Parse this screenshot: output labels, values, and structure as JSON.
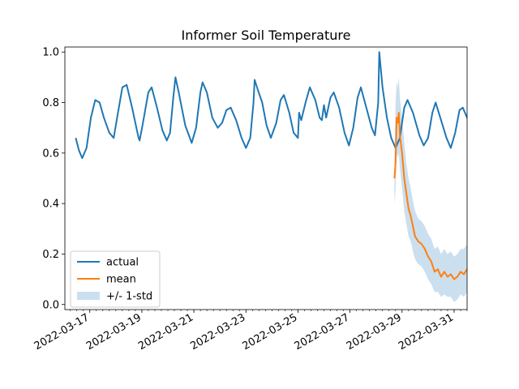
{
  "chart_data": {
    "type": "line",
    "title": "Informer Soil Temperature",
    "xlabel": "",
    "ylabel": "",
    "x_axis_type": "date",
    "xlim": [
      "2022-03-16T01:00",
      "2022-03-31T12:00"
    ],
    "ylim": [
      -0.02,
      1.02
    ],
    "x_ticks": [
      "2022-03-17",
      "2022-03-19",
      "2022-03-21",
      "2022-03-23",
      "2022-03-25",
      "2022-03-27",
      "2022-03-29",
      "2022-03-31"
    ],
    "y_ticks": [
      "0.0",
      "0.2",
      "0.4",
      "0.6",
      "0.8",
      "1.0"
    ],
    "legend": {
      "placement": "lower-left",
      "entries": [
        "actual",
        "mean",
        "+/- 1-std"
      ]
    },
    "colors": {
      "actual": "#1f77b4",
      "mean": "#ff7f0e",
      "band": "#b9d4ea"
    },
    "grid": false,
    "series": [
      {
        "name": "actual",
        "kind": "line",
        "points": [
          [
            "2022-03-16T11:00",
            0.66
          ],
          [
            "2022-03-16T14:00",
            0.61
          ],
          [
            "2022-03-16T17:00",
            0.58
          ],
          [
            "2022-03-16T21:00",
            0.62
          ],
          [
            "2022-03-17T01:00",
            0.74
          ],
          [
            "2022-03-17T05:00",
            0.81
          ],
          [
            "2022-03-17T09:00",
            0.8
          ],
          [
            "2022-03-17T13:00",
            0.74
          ],
          [
            "2022-03-17T18:00",
            0.68
          ],
          [
            "2022-03-17T22:00",
            0.66
          ],
          [
            "2022-03-18T02:00",
            0.76
          ],
          [
            "2022-03-18T06:00",
            0.86
          ],
          [
            "2022-03-18T10:00",
            0.87
          ],
          [
            "2022-03-18T15:00",
            0.78
          ],
          [
            "2022-03-18T19:00",
            0.7
          ],
          [
            "2022-03-18T21:00",
            0.66
          ],
          [
            "2022-03-18T22:00",
            0.65
          ],
          [
            "2022-03-19T01:00",
            0.72
          ],
          [
            "2022-03-19T06:00",
            0.84
          ],
          [
            "2022-03-19T09:00",
            0.86
          ],
          [
            "2022-03-19T14:00",
            0.78
          ],
          [
            "2022-03-19T19:00",
            0.69
          ],
          [
            "2022-03-19T23:00",
            0.65
          ],
          [
            "2022-03-20T02:00",
            0.68
          ],
          [
            "2022-03-20T05:00",
            0.82
          ],
          [
            "2022-03-20T07:00",
            0.9
          ],
          [
            "2022-03-20T10:00",
            0.84
          ],
          [
            "2022-03-20T16:00",
            0.71
          ],
          [
            "2022-03-20T22:00",
            0.64
          ],
          [
            "2022-03-21T02:00",
            0.7
          ],
          [
            "2022-03-21T06:00",
            0.84
          ],
          [
            "2022-03-21T08:00",
            0.88
          ],
          [
            "2022-03-21T12:00",
            0.84
          ],
          [
            "2022-03-21T17:00",
            0.74
          ],
          [
            "2022-03-21T22:00",
            0.7
          ],
          [
            "2022-03-22T02:00",
            0.72
          ],
          [
            "2022-03-22T06:00",
            0.77
          ],
          [
            "2022-03-22T10:00",
            0.78
          ],
          [
            "2022-03-22T15:00",
            0.73
          ],
          [
            "2022-03-22T20:00",
            0.66
          ],
          [
            "2022-03-23T00:00",
            0.62
          ],
          [
            "2022-03-23T04:00",
            0.66
          ],
          [
            "2022-03-23T07:00",
            0.8
          ],
          [
            "2022-03-23T08:00",
            0.89
          ],
          [
            "2022-03-23T11:00",
            0.85
          ],
          [
            "2022-03-23T15:00",
            0.8
          ],
          [
            "2022-03-23T19:00",
            0.71
          ],
          [
            "2022-03-23T23:00",
            0.66
          ],
          [
            "2022-03-24T04:00",
            0.72
          ],
          [
            "2022-03-24T08:00",
            0.81
          ],
          [
            "2022-03-24T11:00",
            0.83
          ],
          [
            "2022-03-24T16:00",
            0.76
          ],
          [
            "2022-03-24T20:00",
            0.68
          ],
          [
            "2022-03-25T00:00",
            0.66
          ],
          [
            "2022-03-25T01:00",
            0.76
          ],
          [
            "2022-03-25T03:00",
            0.73
          ],
          [
            "2022-03-25T07:00",
            0.8
          ],
          [
            "2022-03-25T11:00",
            0.86
          ],
          [
            "2022-03-25T16:00",
            0.81
          ],
          [
            "2022-03-25T20:00",
            0.74
          ],
          [
            "2022-03-25T22:00",
            0.73
          ],
          [
            "2022-03-26T00:00",
            0.79
          ],
          [
            "2022-03-26T02:00",
            0.74
          ],
          [
            "2022-03-26T06:00",
            0.82
          ],
          [
            "2022-03-26T09:00",
            0.84
          ],
          [
            "2022-03-26T14:00",
            0.78
          ],
          [
            "2022-03-26T19:00",
            0.68
          ],
          [
            "2022-03-26T23:00",
            0.63
          ],
          [
            "2022-03-27T03:00",
            0.7
          ],
          [
            "2022-03-27T07:00",
            0.82
          ],
          [
            "2022-03-27T10:00",
            0.86
          ],
          [
            "2022-03-27T15:00",
            0.78
          ],
          [
            "2022-03-27T20:00",
            0.7
          ],
          [
            "2022-03-27T23:00",
            0.67
          ],
          [
            "2022-03-28T02:00",
            0.8
          ],
          [
            "2022-03-28T03:00",
            1.0
          ],
          [
            "2022-03-28T06:00",
            0.86
          ],
          [
            "2022-03-28T10:00",
            0.74
          ],
          [
            "2022-03-28T14:00",
            0.66
          ],
          [
            "2022-03-28T18:00",
            0.62
          ],
          [
            "2022-03-28T22:00",
            0.66
          ],
          [
            "2022-03-29T02:00",
            0.78
          ],
          [
            "2022-03-29T05:00",
            0.81
          ],
          [
            "2022-03-29T10:00",
            0.76
          ],
          [
            "2022-03-29T16:00",
            0.67
          ],
          [
            "2022-03-29T20:00",
            0.63
          ],
          [
            "2022-03-30T00:00",
            0.66
          ],
          [
            "2022-03-30T04:00",
            0.76
          ],
          [
            "2022-03-30T07:00",
            0.8
          ],
          [
            "2022-03-30T12:00",
            0.73
          ],
          [
            "2022-03-30T17:00",
            0.66
          ],
          [
            "2022-03-30T21:00",
            0.62
          ],
          [
            "2022-03-31T01:00",
            0.68
          ],
          [
            "2022-03-31T05:00",
            0.77
          ],
          [
            "2022-03-31T08:00",
            0.78
          ],
          [
            "2022-03-31T13:00",
            0.73
          ],
          [
            "2022-03-31T18:00",
            0.66
          ],
          [
            "2022-03-31T21:00",
            0.63
          ]
        ]
      },
      {
        "name": "mean",
        "kind": "line",
        "points": [
          [
            "2022-03-28T17:00",
            0.5
          ],
          [
            "2022-03-28T18:00",
            0.56
          ],
          [
            "2022-03-28T19:00",
            0.74
          ],
          [
            "2022-03-28T20:00",
            0.72
          ],
          [
            "2022-03-28T21:00",
            0.76
          ],
          [
            "2022-03-28T22:00",
            0.67
          ],
          [
            "2022-03-29T00:00",
            0.6
          ],
          [
            "2022-03-29T02:00",
            0.5
          ],
          [
            "2022-03-29T04:00",
            0.44
          ],
          [
            "2022-03-29T06:00",
            0.38
          ],
          [
            "2022-03-29T08:00",
            0.35
          ],
          [
            "2022-03-29T10:00",
            0.31
          ],
          [
            "2022-03-29T12:00",
            0.27
          ],
          [
            "2022-03-29T15:00",
            0.25
          ],
          [
            "2022-03-29T18:00",
            0.24
          ],
          [
            "2022-03-29T21:00",
            0.22
          ],
          [
            "2022-03-30T00:00",
            0.19
          ],
          [
            "2022-03-30T03:00",
            0.17
          ],
          [
            "2022-03-30T06:00",
            0.13
          ],
          [
            "2022-03-30T09:00",
            0.14
          ],
          [
            "2022-03-30T12:00",
            0.11
          ],
          [
            "2022-03-30T15:00",
            0.13
          ],
          [
            "2022-03-30T18:00",
            0.11
          ],
          [
            "2022-03-30T21:00",
            0.12
          ],
          [
            "2022-03-31T00:00",
            0.1
          ],
          [
            "2022-03-31T03:00",
            0.11
          ],
          [
            "2022-03-31T06:00",
            0.13
          ],
          [
            "2022-03-31T09:00",
            0.12
          ],
          [
            "2022-03-31T12:00",
            0.14
          ],
          [
            "2022-03-31T15:00",
            0.15
          ],
          [
            "2022-03-31T18:00",
            0.16
          ],
          [
            "2022-03-31T21:00",
            0.17
          ]
        ]
      },
      {
        "name": "+/- 1-std",
        "kind": "band",
        "points": [
          [
            "2022-03-28T17:00",
            0.4,
            0.6
          ],
          [
            "2022-03-28T18:00",
            0.45,
            0.8
          ],
          [
            "2022-03-28T19:00",
            0.6,
            0.88
          ],
          [
            "2022-03-28T20:00",
            0.58,
            0.86
          ],
          [
            "2022-03-28T21:00",
            0.6,
            0.9
          ],
          [
            "2022-03-28T22:00",
            0.54,
            0.82
          ],
          [
            "2022-03-29T00:00",
            0.46,
            0.74
          ],
          [
            "2022-03-29T02:00",
            0.37,
            0.64
          ],
          [
            "2022-03-29T04:00",
            0.32,
            0.56
          ],
          [
            "2022-03-29T06:00",
            0.27,
            0.5
          ],
          [
            "2022-03-29T08:00",
            0.25,
            0.46
          ],
          [
            "2022-03-29T10:00",
            0.21,
            0.41
          ],
          [
            "2022-03-29T12:00",
            0.18,
            0.37
          ],
          [
            "2022-03-29T15:00",
            0.16,
            0.34
          ],
          [
            "2022-03-29T18:00",
            0.15,
            0.33
          ],
          [
            "2022-03-29T21:00",
            0.13,
            0.31
          ],
          [
            "2022-03-30T00:00",
            0.1,
            0.28
          ],
          [
            "2022-03-30T03:00",
            0.08,
            0.26
          ],
          [
            "2022-03-30T06:00",
            0.05,
            0.22
          ],
          [
            "2022-03-30T09:00",
            0.05,
            0.23
          ],
          [
            "2022-03-30T12:00",
            0.03,
            0.2
          ],
          [
            "2022-03-30T15:00",
            0.04,
            0.22
          ],
          [
            "2022-03-30T18:00",
            0.03,
            0.2
          ],
          [
            "2022-03-30T21:00",
            0.03,
            0.21
          ],
          [
            "2022-03-31T00:00",
            0.01,
            0.19
          ],
          [
            "2022-03-31T03:00",
            0.02,
            0.2
          ],
          [
            "2022-03-31T06:00",
            0.04,
            0.22
          ],
          [
            "2022-03-31T09:00",
            0.03,
            0.22
          ],
          [
            "2022-03-31T12:00",
            0.05,
            0.24
          ],
          [
            "2022-03-31T15:00",
            0.06,
            0.25
          ],
          [
            "2022-03-31T18:00",
            0.07,
            0.26
          ],
          [
            "2022-03-31T21:00",
            0.08,
            0.27
          ]
        ]
      }
    ]
  }
}
